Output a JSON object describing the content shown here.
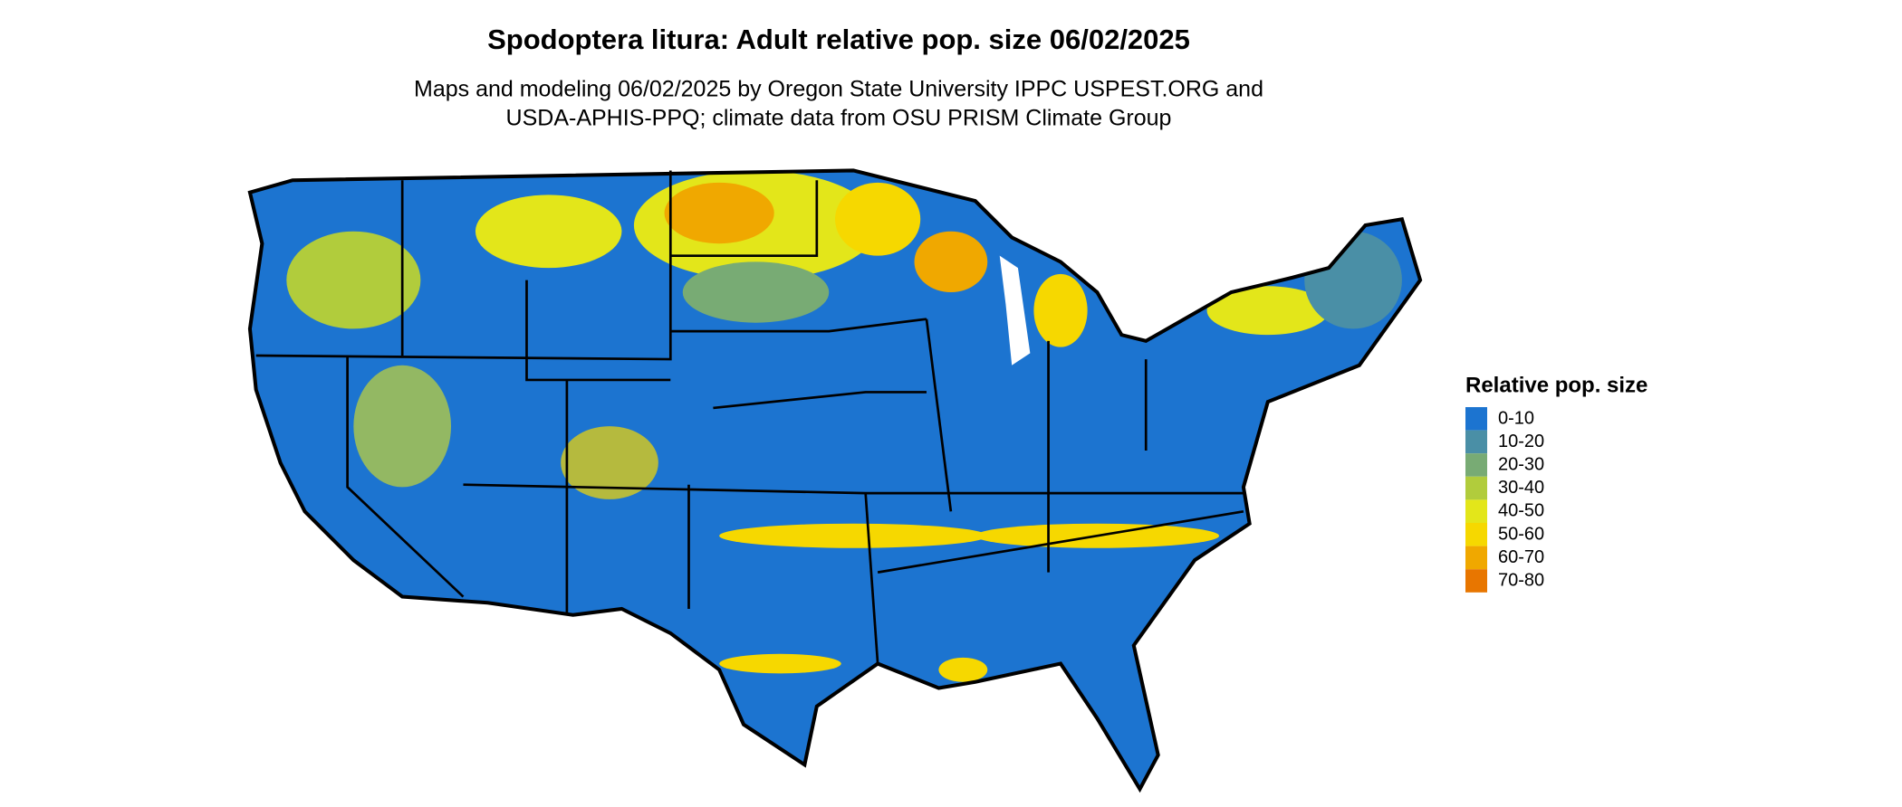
{
  "header": {
    "title": "Spodoptera litura: Adult relative pop. size 06/02/2025",
    "subtitle": [
      "Maps and modeling 06/02/2025 by Oregon State University IPPC USPEST.ORG and",
      "USDA-APHIS-PPQ; climate data from OSU PRISM Climate Group"
    ]
  },
  "legend": {
    "title": "Relative pop. size",
    "items": [
      {
        "label": "0-10",
        "color": "#1c74d0"
      },
      {
        "label": "10-20",
        "color": "#4a8fa6"
      },
      {
        "label": "20-30",
        "color": "#78ab74"
      },
      {
        "label": "30-40",
        "color": "#b1cc3c"
      },
      {
        "label": "40-50",
        "color": "#e3e61a"
      },
      {
        "label": "50-60",
        "color": "#f6d800"
      },
      {
        "label": "60-70",
        "color": "#f0a800"
      },
      {
        "label": "70-80",
        "color": "#e87600"
      }
    ]
  }
}
